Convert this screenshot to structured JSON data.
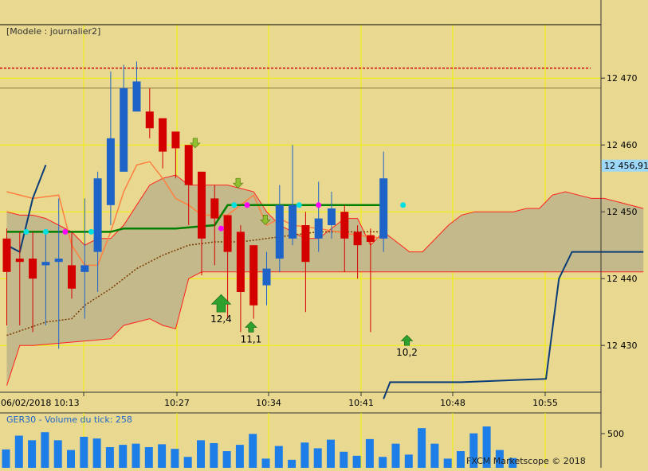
{
  "main_panel": {
    "model_label": "[Modele : journalier2]",
    "price_ticks": [
      "12 470",
      "12 460",
      "12 450",
      "12 440",
      "12 430"
    ],
    "price_tick_values": [
      12470,
      12460,
      12450,
      12440,
      12430
    ],
    "current_price_label": "12 456,91",
    "current_price": 12456.91,
    "time_labels": [
      "06/02/2018 10:13",
      "10:27",
      "10:34",
      "10:41",
      "10:48",
      "10:55"
    ],
    "signal_labels": [
      "12,4",
      "11,1",
      "10,2"
    ]
  },
  "volume_panel": {
    "title": "GER30 - Volume du tick: 258",
    "tick_label": "500",
    "tick_value": 500,
    "footer": "FXCM Marketscope © 2018"
  },
  "colors": {
    "bull": "#1e64c8",
    "bear": "#d40000",
    "grid": "#f0f000",
    "cloud": "#c4b98a",
    "cloud_edge": "#ff2020",
    "tenkan": "#ff8040",
    "kijun": "#008000",
    "chikou": "#7a3a00",
    "blue_line": "#0a3c78",
    "resistance": "#d00000",
    "volume": "#1e7ee8",
    "signal_up": "#2ea02e",
    "signal_down": "#90c030",
    "marker_cyan": "#00e0e0",
    "marker_magenta": "#ff00ff"
  },
  "chart_data": {
    "type": "candlestick",
    "y_range": [
      12423,
      12478
    ],
    "x_range": [
      0,
      49
    ],
    "candles": [
      {
        "i": 0,
        "o": 12446,
        "h": 12447.5,
        "l": 12433,
        "c": 12441
      },
      {
        "i": 1,
        "o": 12443,
        "h": 12447,
        "l": 12433,
        "c": 12442.5
      },
      {
        "i": 2,
        "o": 12443,
        "h": 12447,
        "l": 12432,
        "c": 12440
      },
      {
        "i": 3,
        "o": 12442,
        "h": 12447,
        "l": 12433,
        "c": 12442.5
      },
      {
        "i": 4,
        "o": 12442.5,
        "h": 12452,
        "l": 12429.5,
        "c": 12443
      },
      {
        "i": 5,
        "o": 12442,
        "h": 12447,
        "l": 12437,
        "c": 12438.5
      },
      {
        "i": 6,
        "o": 12441,
        "h": 12452,
        "l": 12434,
        "c": 12442
      },
      {
        "i": 7,
        "o": 12444,
        "h": 12456,
        "l": 12438,
        "c": 12455
      },
      {
        "i": 8,
        "o": 12451,
        "h": 12471,
        "l": 12448,
        "c": 12461
      },
      {
        "i": 9,
        "o": 12456,
        "h": 12472,
        "l": 12456,
        "c": 12468.5
      },
      {
        "i": 10,
        "o": 12465,
        "h": 12472.5,
        "l": 12465,
        "c": 12469.5
      },
      {
        "i": 11,
        "o": 12465,
        "h": 12468.5,
        "l": 12461,
        "c": 12462.5
      },
      {
        "i": 12,
        "o": 12464,
        "h": 12464,
        "l": 12456.5,
        "c": 12459
      },
      {
        "i": 13,
        "o": 12462,
        "h": 12462,
        "l": 12455,
        "c": 12459.5
      },
      {
        "i": 14,
        "o": 12460,
        "h": 12460,
        "l": 12448,
        "c": 12454
      },
      {
        "i": 15,
        "o": 12456,
        "h": 12456,
        "l": 12440.5,
        "c": 12446
      },
      {
        "i": 16,
        "o": 12452,
        "h": 12454,
        "l": 12442,
        "c": 12449
      },
      {
        "i": 17,
        "o": 12449.5,
        "h": 12449.5,
        "l": 12434,
        "c": 12444
      },
      {
        "i": 18,
        "o": 12447,
        "h": 12448,
        "l": 12432,
        "c": 12438
      },
      {
        "i": 19,
        "o": 12445,
        "h": 12445,
        "l": 12434,
        "c": 12436
      },
      {
        "i": 20,
        "o": 12439,
        "h": 12444,
        "l": 12436,
        "c": 12441.5
      },
      {
        "i": 21,
        "o": 12443,
        "h": 12454,
        "l": 12441,
        "c": 12451
      },
      {
        "i": 22,
        "o": 12446,
        "h": 12460,
        "l": 12445,
        "c": 12451
      },
      {
        "i": 23,
        "o": 12448,
        "h": 12450,
        "l": 12435,
        "c": 12442.5
      },
      {
        "i": 24,
        "o": 12446,
        "h": 12454.5,
        "l": 12444,
        "c": 12449
      },
      {
        "i": 25,
        "o": 12448,
        "h": 12453,
        "l": 12446,
        "c": 12450.5
      },
      {
        "i": 26,
        "o": 12450,
        "h": 12451,
        "l": 12441,
        "c": 12446
      },
      {
        "i": 27,
        "o": 12447,
        "h": 12448,
        "l": 12440,
        "c": 12445
      },
      {
        "i": 28,
        "o": 12446.5,
        "h": 12447.5,
        "l": 12432,
        "c": 12445.5
      },
      {
        "i": 29,
        "o": 12446,
        "h": 12459,
        "l": 12444,
        "c": 12455
      }
    ],
    "volume": {
      "y_range": [
        0,
        900
      ],
      "values": [
        320,
        560,
        480,
        620,
        480,
        310,
        540,
        510,
        360,
        400,
        420,
        360,
        410,
        330,
        190,
        480,
        430,
        290,
        400,
        590,
        160,
        380,
        140,
        440,
        340,
        490,
        280,
        210,
        500,
        190,
        420,
        230,
        690,
        420,
        160,
        290,
        600,
        720,
        310,
        170
      ]
    },
    "tenkan": [
      [
        0,
        12453
      ],
      [
        2,
        12452
      ],
      [
        4,
        12452.5
      ],
      [
        5,
        12445
      ],
      [
        6,
        12442
      ],
      [
        7,
        12442
      ],
      [
        8,
        12447
      ],
      [
        9,
        12453
      ],
      [
        10,
        12457
      ],
      [
        11,
        12457.5
      ],
      [
        12,
        12455
      ],
      [
        13,
        12452
      ],
      [
        14,
        12451
      ],
      [
        15,
        12449.5
      ],
      [
        16,
        12449.5
      ],
      [
        17,
        12449.5
      ],
      [
        19,
        12452.5
      ],
      [
        20,
        12448
      ],
      [
        21,
        12449
      ],
      [
        22,
        12448
      ],
      [
        24,
        12447.5
      ],
      [
        27,
        12446.5
      ],
      [
        29,
        12446
      ]
    ],
    "kijun": [
      [
        0,
        12447
      ],
      [
        8,
        12447
      ],
      [
        9,
        12447.5
      ],
      [
        13,
        12447.5
      ],
      [
        16,
        12448
      ],
      [
        17,
        12451
      ],
      [
        29,
        12451
      ]
    ],
    "chikou": [
      [
        0,
        12431.5
      ],
      [
        3,
        12433.5
      ],
      [
        5,
        12434
      ],
      [
        6,
        12436
      ],
      [
        8,
        12438.5
      ],
      [
        10,
        12441.5
      ],
      [
        12,
        12443.5
      ],
      [
        14,
        12445
      ],
      [
        16,
        12445.5
      ],
      [
        18,
        12445.5
      ],
      [
        20,
        12446
      ],
      [
        24,
        12447
      ],
      [
        29,
        12447
      ]
    ],
    "blue_line": [
      [
        0,
        12445
      ],
      [
        1,
        12444
      ],
      [
        2,
        12452
      ],
      [
        3,
        12457
      ]
    ],
    "cloud_top": [
      [
        0,
        12450
      ],
      [
        1,
        12449.5
      ],
      [
        2,
        12449.5
      ],
      [
        3,
        12449
      ],
      [
        4,
        12448
      ],
      [
        5,
        12447
      ],
      [
        6,
        12445
      ],
      [
        7,
        12446
      ],
      [
        8,
        12446
      ],
      [
        9,
        12448
      ],
      [
        10,
        12451
      ],
      [
        11,
        12454
      ],
      [
        12,
        12455
      ],
      [
        13,
        12455.5
      ],
      [
        14,
        12454
      ],
      [
        15,
        12454
      ],
      [
        16,
        12454
      ],
      [
        17,
        12454
      ],
      [
        19,
        12453
      ],
      [
        20,
        12450
      ],
      [
        21,
        12448
      ],
      [
        23,
        12446
      ],
      [
        24,
        12446
      ],
      [
        26,
        12449
      ],
      [
        27,
        12449
      ],
      [
        28,
        12445
      ],
      [
        29,
        12447
      ],
      [
        31,
        12444
      ],
      [
        32,
        12444
      ],
      [
        34,
        12448
      ],
      [
        35,
        12449.5
      ],
      [
        36,
        12450
      ],
      [
        39,
        12450
      ],
      [
        40,
        12450.5
      ],
      [
        41,
        12450.5
      ],
      [
        42,
        12452.5
      ],
      [
        43,
        12453
      ],
      [
        44,
        12452.5
      ],
      [
        45,
        12452
      ],
      [
        46,
        12452
      ],
      [
        49,
        12450.5
      ]
    ],
    "cloud_bottom": [
      [
        0,
        12424
      ],
      [
        1,
        12430
      ],
      [
        2,
        12430
      ],
      [
        8,
        12431
      ],
      [
        9,
        12433
      ],
      [
        11,
        12434
      ],
      [
        12,
        12433
      ],
      [
        13,
        12432.5
      ],
      [
        14,
        12440
      ],
      [
        15,
        12441
      ],
      [
        29,
        12441
      ],
      [
        49,
        12441
      ]
    ],
    "bottom_line": [
      [
        29,
        12422
      ],
      [
        29.5,
        12424.5
      ],
      [
        35,
        12424.5
      ],
      [
        41.5,
        12425
      ],
      [
        42.5,
        12440
      ],
      [
        43.5,
        12444
      ],
      [
        49,
        12444
      ]
    ],
    "resistance": 12471.5,
    "markers_cyan": [
      [
        1.5,
        12447
      ],
      [
        3,
        12447
      ],
      [
        6.5,
        12447
      ],
      [
        17.5,
        12451
      ],
      [
        22.5,
        12451
      ],
      [
        30.5,
        12451
      ]
    ],
    "markers_magenta": [
      [
        4.5,
        12447
      ],
      [
        16.5,
        12447.5
      ],
      [
        18.5,
        12451
      ],
      [
        24,
        12451
      ]
    ],
    "signals_up": [
      {
        "x": 16.5,
        "y": 12435,
        "label": "12,4",
        "big": true
      },
      {
        "x": 18.8,
        "y": 12432,
        "label": "11,1",
        "big": false
      },
      {
        "x": 30.8,
        "y": 12430,
        "label": "10,2",
        "big": false
      }
    ],
    "signals_down": [
      [
        14.5,
        12461
      ],
      [
        17.8,
        12455
      ],
      [
        19.9,
        12449.5
      ]
    ]
  }
}
